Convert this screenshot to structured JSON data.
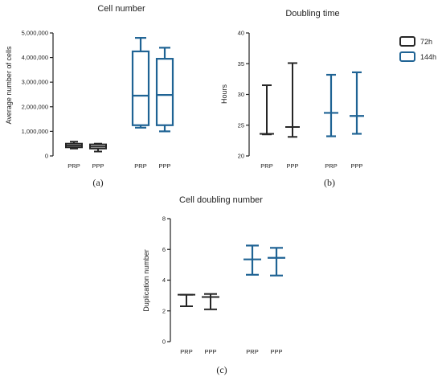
{
  "colors": {
    "series_72h": "#262626",
    "series_144h": "#1f6394",
    "axis": "#222222"
  },
  "chart_data": [
    {
      "type": "boxplot",
      "title": "Cell number",
      "panel_label": "(a)",
      "ylabel": "Average number of cells",
      "ylim": [
        0,
        5000000
      ],
      "yticks": [
        0,
        1000000,
        2000000,
        3000000,
        4000000,
        5000000
      ],
      "ytick_labels": [
        "0",
        "1,000,000",
        "2,000,000",
        "3,000,000",
        "4,000,000",
        "5,000,000"
      ],
      "groups": [
        {
          "category": "PRP",
          "series": "72h",
          "min": 300000,
          "q1": 350000,
          "median": 420000,
          "q3": 500000,
          "max": 580000
        },
        {
          "category": "PPP",
          "series": "72h",
          "min": 180000,
          "q1": 300000,
          "median": 380000,
          "q3": 470000,
          "max": 500000
        },
        {
          "category": "PRP",
          "series": "144h",
          "min": 1150000,
          "q1": 1250000,
          "median": 2450000,
          "q3": 4250000,
          "max": 4800000
        },
        {
          "category": "PPP",
          "series": "144h",
          "min": 1000000,
          "q1": 1250000,
          "median": 2480000,
          "q3": 3950000,
          "max": 4400000
        }
      ]
    },
    {
      "type": "range",
      "title": "Doubling time",
      "panel_label": "(b)",
      "ylabel": "Hours",
      "ylim": [
        20,
        40
      ],
      "yticks": [
        20,
        25,
        30,
        35,
        40
      ],
      "ytick_labels": [
        "20",
        "25",
        "30",
        "35",
        "40"
      ],
      "groups": [
        {
          "category": "PRP",
          "series": "72h",
          "min": 23.5,
          "mid": 23.6,
          "max": 31.5
        },
        {
          "category": "PPP",
          "series": "72h",
          "min": 23.1,
          "mid": 24.7,
          "max": 35.1
        },
        {
          "category": "PRP",
          "series": "144h",
          "min": 23.2,
          "mid": 27.0,
          "max": 33.2
        },
        {
          "category": "PPP",
          "series": "144h",
          "min": 23.6,
          "mid": 26.5,
          "max": 33.6
        }
      ]
    },
    {
      "type": "range",
      "title": "Cell doubling number",
      "panel_label": "(c)",
      "ylabel": "Duplication number",
      "ylim": [
        0,
        8
      ],
      "yticks": [
        0,
        2,
        4,
        6,
        8
      ],
      "ytick_labels": [
        "0",
        "2",
        "4",
        "6",
        "8"
      ],
      "groups": [
        {
          "category": "PRP",
          "series": "72h",
          "min": 2.3,
          "mid": 3.05,
          "max": 3.05
        },
        {
          "category": "PPP",
          "series": "72h",
          "min": 2.1,
          "mid": 2.9,
          "max": 3.1
        },
        {
          "category": "PRP",
          "series": "144h",
          "min": 4.35,
          "mid": 5.35,
          "max": 6.25
        },
        {
          "category": "PPP",
          "series": "144h",
          "min": 4.3,
          "mid": 5.45,
          "max": 6.1
        }
      ]
    }
  ],
  "legend": {
    "placement": "right-of-panel-b",
    "entries": [
      {
        "series": "72h",
        "label": "72h",
        "color": "#262626"
      },
      {
        "series": "144h",
        "label": "144h",
        "color": "#1f6394"
      }
    ]
  }
}
